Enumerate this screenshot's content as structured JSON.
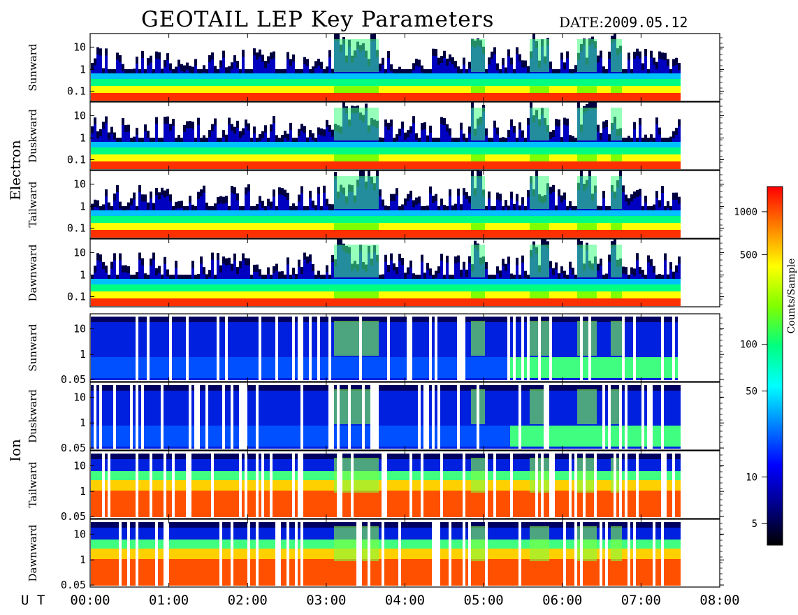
{
  "header": {
    "title": "GEOTAIL LEP Key Parameters",
    "date_label": "DATE:",
    "date_value": "2009.05.12"
  },
  "chart_data": {
    "type": "heatmap",
    "title": "GEOTAIL LEP Key Parameters",
    "x_axis": {
      "label": "U T",
      "ticks": [
        "00:00",
        "01:00",
        "02:00",
        "03:00",
        "04:00",
        "05:00",
        "06:00",
        "07:00",
        "08:00"
      ],
      "range": [
        "00:00",
        "08:00"
      ],
      "data_end": "07:30"
    },
    "groups": [
      {
        "name": "Electron",
        "panels": [
          {
            "name": "Sunward",
            "y_ticks": [
              "10",
              "1",
              "0.1"
            ],
            "y_scale": "log"
          },
          {
            "name": "Duskward",
            "y_ticks": [
              "10",
              "1",
              "0.1"
            ],
            "y_scale": "log"
          },
          {
            "name": "Tailward",
            "y_ticks": [
              "10",
              "1",
              "0.1"
            ],
            "y_scale": "log"
          },
          {
            "name": "Dawnward",
            "y_ticks": [
              "10",
              "1",
              "0.1"
            ],
            "y_scale": "log"
          }
        ]
      },
      {
        "name": "Ion",
        "panels": [
          {
            "name": "Sunward",
            "y_ticks": [
              "10",
              "1",
              "0.05"
            ],
            "y_scale": "log"
          },
          {
            "name": "Duskward",
            "y_ticks": [
              "10",
              "1",
              "0.05"
            ],
            "y_scale": "log"
          },
          {
            "name": "Tailward",
            "y_ticks": [
              "10",
              "1",
              "0.05"
            ],
            "y_scale": "log"
          },
          {
            "name": "Dawnward",
            "y_ticks": [
              "10",
              "1",
              "0.05"
            ],
            "y_scale": "log"
          }
        ]
      }
    ],
    "colorbar": {
      "label": "Counts/Sample",
      "scale": "log",
      "ticks": [
        "1000",
        "500",
        "100",
        "50",
        "10",
        "5"
      ],
      "colors": [
        "#000000",
        "#00008a",
        "#0000ff",
        "#0080ff",
        "#00ffff",
        "#00ff80",
        "#80ff00",
        "#ffff00",
        "#ff8000",
        "#ff0000"
      ]
    }
  }
}
